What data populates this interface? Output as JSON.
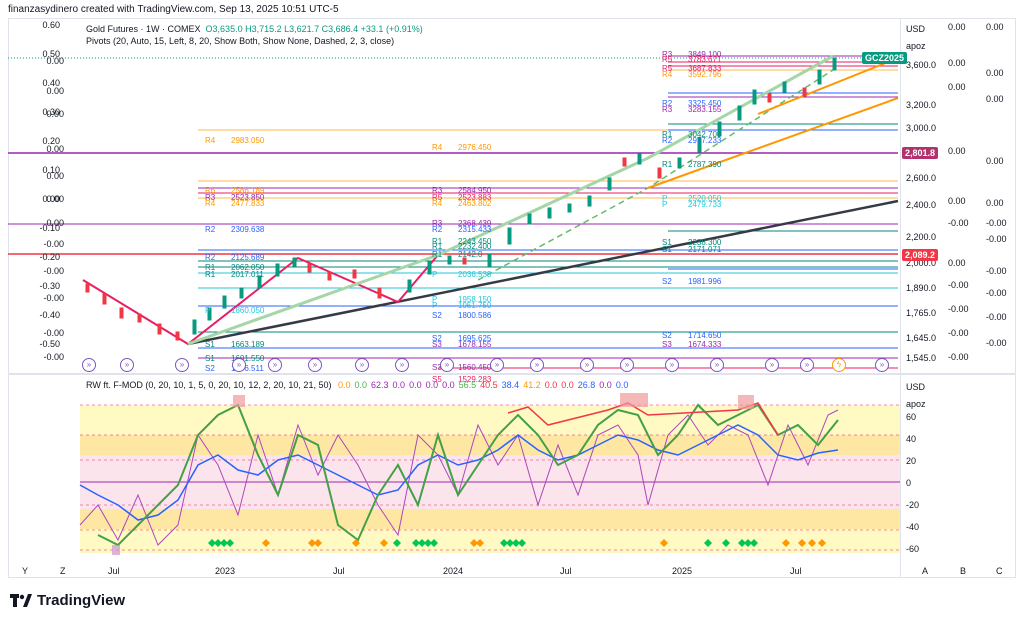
{
  "caption": "finanzasydinero created with TradingView.com, Sep 13, 2025 10:51 UTC-5",
  "header": {
    "symbol": "Gold Futures · 1W · COMEX",
    "ohlc": "O3,635.0  H3,715.2  L3,621.7  C3,686.4  +33.1 (+0.91%)",
    "pivots_indicator": "Pivots (20, Auto, 15, Left, 8, 20, Show Both, Show None, Dashed, 2, 3, close)"
  },
  "oscillator_header": {
    "name": "RW ft. F-MOD (0, 20, 10, 1, 5, 0, 20, 10, 12, 2, 20, 10, 21, 50)",
    "values": [
      "0.0",
      "0.0",
      "62.3",
      "0.0",
      "0.0",
      "0.0",
      "0.0",
      "56.5",
      "40.5",
      "38.4",
      "41.2",
      "0.0",
      "0.0",
      "26.8",
      "0.0",
      "0.0"
    ],
    "value_colors": [
      "#ff9800",
      "#4caf50",
      "#9c27b0",
      "#9c27b0",
      "#9c27b0",
      "#9c27b0",
      "#9c27b0",
      "#4caf50",
      "#f23645",
      "#2962ff",
      "#ff9800",
      "#f23645",
      "#f23645",
      "#2962ff",
      "#9c27b0",
      "#2962ff"
    ]
  },
  "price_axis": {
    "currency": "USD",
    "mode": "apoz",
    "ticks": [
      "3,600.0",
      "3,200.0",
      "3,000.0",
      "2,600.0",
      "2,400.0",
      "2,200.0",
      "2,000.0",
      "1,890.0",
      "1,765.0",
      "1,645.0",
      "1,545.0"
    ],
    "contract_tag": "GCZ2025",
    "last_price_tag": "2,801.8",
    "level_tag": "2,089.2",
    "tag_colors": {
      "contract": "#089981",
      "last": "#b2326e",
      "level": "#f23645"
    }
  },
  "left_scale_1": [
    "0.60",
    "0.50",
    "0.40",
    "0.30",
    "0.20",
    "0.10",
    "0.00",
    "-0.10",
    "-0.20",
    "-0.30",
    "-0.40",
    "-0.50"
  ],
  "left_scale_2": [
    "0.00",
    "0.00",
    "0.00",
    "0.00",
    "0.00",
    "0.00",
    "0.00",
    "-0.00",
    "-0.00",
    "-0.00",
    "-0.00",
    "-0.00"
  ],
  "right_scale_1": [
    "0.00",
    "0.00",
    "0.00",
    "0.00",
    "0.00",
    "0.00",
    "-0.00",
    "-0.00",
    "-0.00",
    "-0.00",
    "-0.00"
  ],
  "right_scale_2": [
    "0.00",
    "0.00",
    "0.00",
    "0.00",
    "0.00",
    "-0.00",
    "-0.00",
    "-0.00",
    "-0.00",
    "-0.00",
    "-0.00"
  ],
  "oscillator_axis": {
    "currency": "USD",
    "mode": "apoz",
    "ticks": [
      "60",
      "40",
      "20",
      "0",
      "-20",
      "-40",
      "-60"
    ]
  },
  "time_axis": [
    "Jul",
    "2023",
    "Jul",
    "2024",
    "Jul",
    "2025",
    "Jul"
  ],
  "axis_controls": {
    "left": [
      "Y",
      "Z"
    ],
    "right": [
      "A",
      "B",
      "C"
    ]
  },
  "pivot_labels": [
    {
      "t": "R3",
      "v": "3849.100",
      "c": "#9c27b0"
    },
    {
      "t": "R5",
      "v": "3783.671",
      "c": "#e91e63"
    },
    {
      "t": "R5",
      "v": "3687.833",
      "c": "#e91e63"
    },
    {
      "t": "R4",
      "v": "3592.796",
      "c": "#ff9800"
    },
    {
      "t": "R2",
      "v": "3325.450",
      "c": "#2962ff"
    },
    {
      "t": "R3",
      "v": "3283.155",
      "c": "#9c27b0"
    },
    {
      "t": "R1",
      "v": "3042.700",
      "c": "#00897b"
    },
    {
      "t": "R2",
      "v": "2977.233",
      "c": "#2962ff"
    },
    {
      "t": "R4",
      "v": "2983.050",
      "c": "#ff9800"
    },
    {
      "t": "R4",
      "v": "2976.450",
      "c": "#ff9800"
    },
    {
      "t": "R1",
      "v": "2787.390",
      "c": "#00897b"
    },
    {
      "t": "R6",
      "v": "2586.189",
      "c": "#ff9800"
    },
    {
      "t": "R3",
      "v": "2584.950",
      "c": "#9c27b0"
    },
    {
      "t": "R3",
      "v": "2523.850",
      "c": "#9c27b0"
    },
    {
      "t": "R5",
      "v": "2523.883",
      "c": "#e91e63"
    },
    {
      "t": "R4",
      "v": "2477.833",
      "c": "#ff9800"
    },
    {
      "t": "R4",
      "v": "2463.802",
      "c": "#ff9800"
    },
    {
      "t": "P",
      "v": "2520.050",
      "c": "#26c6da"
    },
    {
      "t": "P",
      "v": "2479.733",
      "c": "#26c6da"
    },
    {
      "t": "R3",
      "v": "2368.439",
      "c": "#9c27b0"
    },
    {
      "t": "R2",
      "v": "2309.638",
      "c": "#2962ff"
    },
    {
      "t": "R2",
      "v": "2315.433",
      "c": "#2962ff"
    },
    {
      "t": "R1",
      "v": "2243.450",
      "c": "#00897b"
    },
    {
      "t": "R1",
      "v": "2232.400",
      "c": "#00897b"
    },
    {
      "t": "S1",
      "v": "2238.300",
      "c": "#00897b"
    },
    {
      "t": "S1",
      "v": "2171.071",
      "c": "#00897b"
    },
    {
      "t": "R2",
      "v": "2125.689",
      "c": "#2962ff"
    },
    {
      "t": "R1",
      "v": "2142.0",
      "c": "#00897b"
    },
    {
      "t": "R1",
      "v": "2062.050",
      "c": "#00897b"
    },
    {
      "t": "R1",
      "v": "2017.011",
      "c": "#00897b"
    },
    {
      "t": "P",
      "v": "2036.533",
      "c": "#26c6da"
    },
    {
      "t": "S2",
      "v": "1981.996",
      "c": "#2962ff"
    },
    {
      "t": "P",
      "v": "1958.150",
      "c": "#26c6da"
    },
    {
      "t": "P",
      "v": "1951.750",
      "c": "#26c6da"
    },
    {
      "t": "P",
      "v": "1860.050",
      "c": "#26c6da"
    },
    {
      "t": "S2",
      "v": "1800.586",
      "c": "#2962ff"
    },
    {
      "t": "S2",
      "v": "1714.650",
      "c": "#2962ff"
    },
    {
      "t": "S2",
      "v": "1695.625",
      "c": "#2962ff"
    },
    {
      "t": "S3",
      "v": "1678.155",
      "c": "#9c27b0"
    },
    {
      "t": "S3",
      "v": "1674.333",
      "c": "#9c27b0"
    },
    {
      "t": "S1",
      "v": "1663.189",
      "c": "#00897b"
    },
    {
      "t": "S1",
      "v": "1601.550",
      "c": "#00897b"
    },
    {
      "t": "S2",
      "v": "1556.511",
      "c": "#2962ff"
    },
    {
      "t": "S3",
      "v": "1560.450",
      "c": "#9c27b0"
    },
    {
      "t": "S5",
      "v": "1529.283",
      "c": "#e91e63"
    }
  ],
  "brand": "TradingView"
}
